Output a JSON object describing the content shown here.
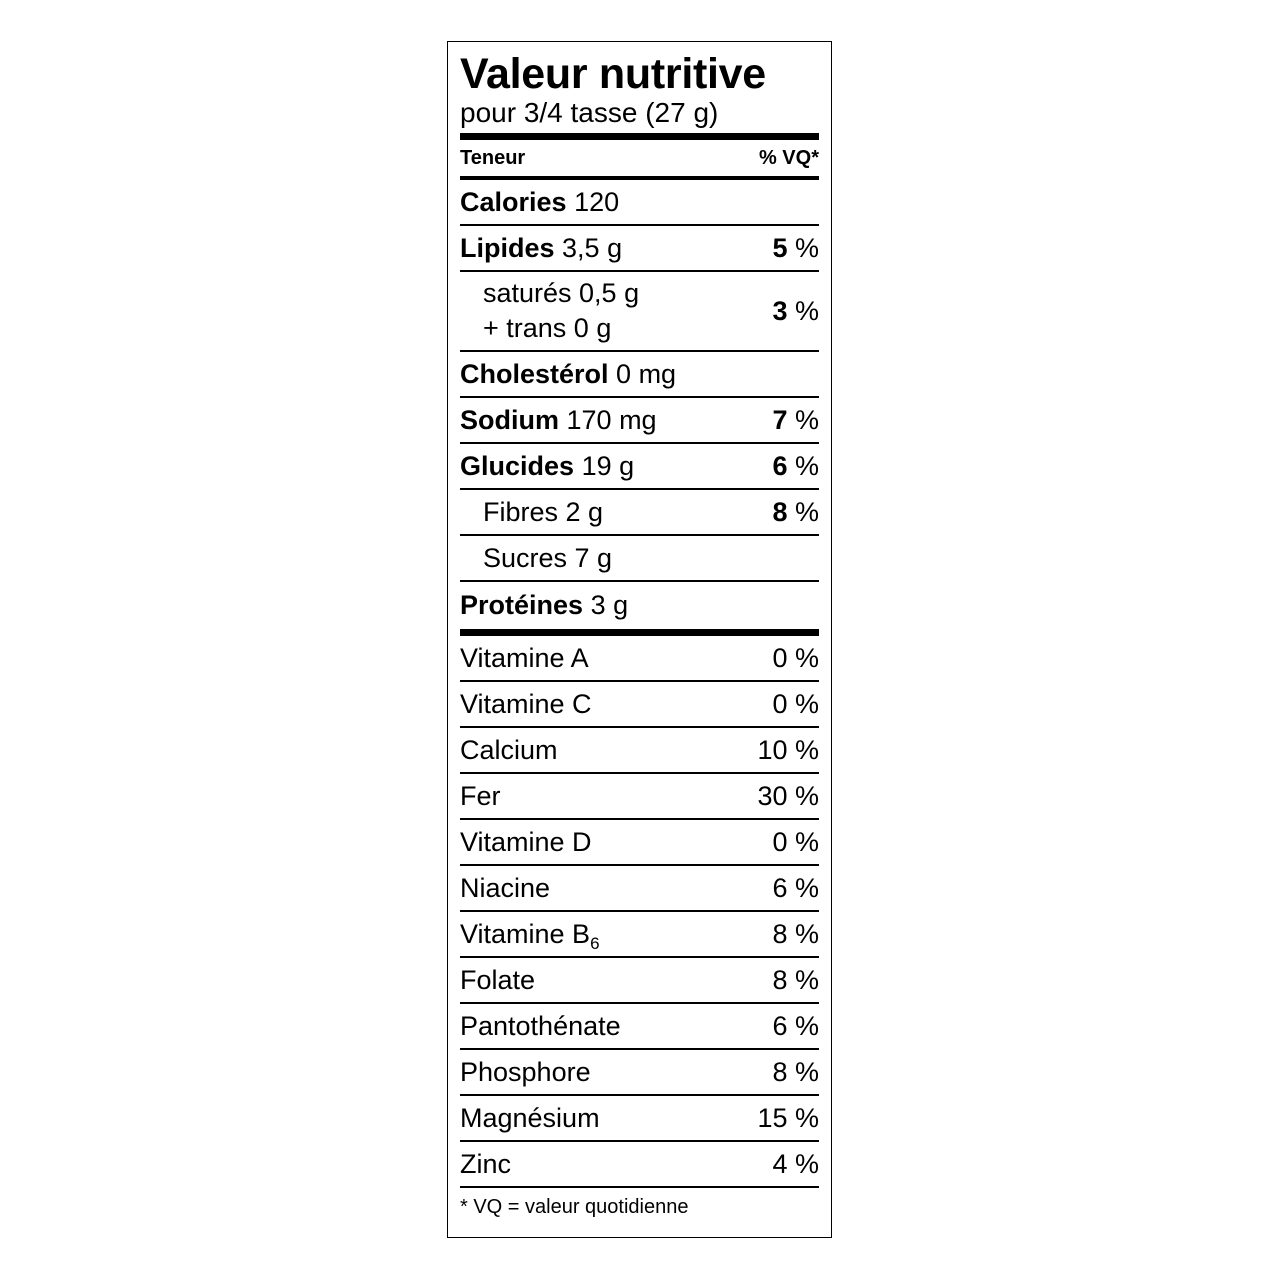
{
  "title": "Valeur nutritive",
  "serving": "pour 3/4 tasse (27 g)",
  "header": {
    "left": "Teneur",
    "right": "% VQ*"
  },
  "nutrients": [
    {
      "name": "Calories",
      "amount": "120",
      "dv": ""
    },
    {
      "name": "Lipides",
      "amount": "3,5 g",
      "dv_num": "5",
      "dv_unit": "%"
    },
    {
      "line1": "saturés 0,5 g",
      "line2": "+ trans 0 g",
      "dv_num": "3",
      "dv_unit": "%"
    },
    {
      "name": "Cholestérol",
      "amount": "0 mg"
    },
    {
      "name": "Sodium",
      "amount": "170 mg",
      "dv_num": "7",
      "dv_unit": "%"
    },
    {
      "name": "Glucides",
      "amount": "19 g",
      "dv_num": "6",
      "dv_unit": "%"
    },
    {
      "text": "Fibres 2 g",
      "dv_num": "8",
      "dv_unit": "%"
    },
    {
      "text": "Sucres 7 g"
    },
    {
      "name": "Protéines",
      "amount": "3 g"
    }
  ],
  "vitamins": [
    {
      "name": "Vitamine A",
      "dv": "0 %"
    },
    {
      "name": "Vitamine C",
      "dv": "0 %"
    },
    {
      "name": "Calcium",
      "dv": "10 %"
    },
    {
      "name": "Fer",
      "dv": "30 %"
    },
    {
      "name": "Vitamine D",
      "dv": "0 %"
    },
    {
      "name": "Niacine",
      "dv": "6 %"
    },
    {
      "name": "Vitamine B",
      "sub": "6",
      "dv": "8 %"
    },
    {
      "name": "Folate",
      "dv": "8 %"
    },
    {
      "name": "Pantothénate",
      "dv": "6 %"
    },
    {
      "name": "Phosphore",
      "dv": "8 %"
    },
    {
      "name": "Magnésium",
      "dv": "15 %"
    },
    {
      "name": "Zinc",
      "dv": "4 %"
    }
  ],
  "footnote": "* VQ = valeur quotidienne"
}
